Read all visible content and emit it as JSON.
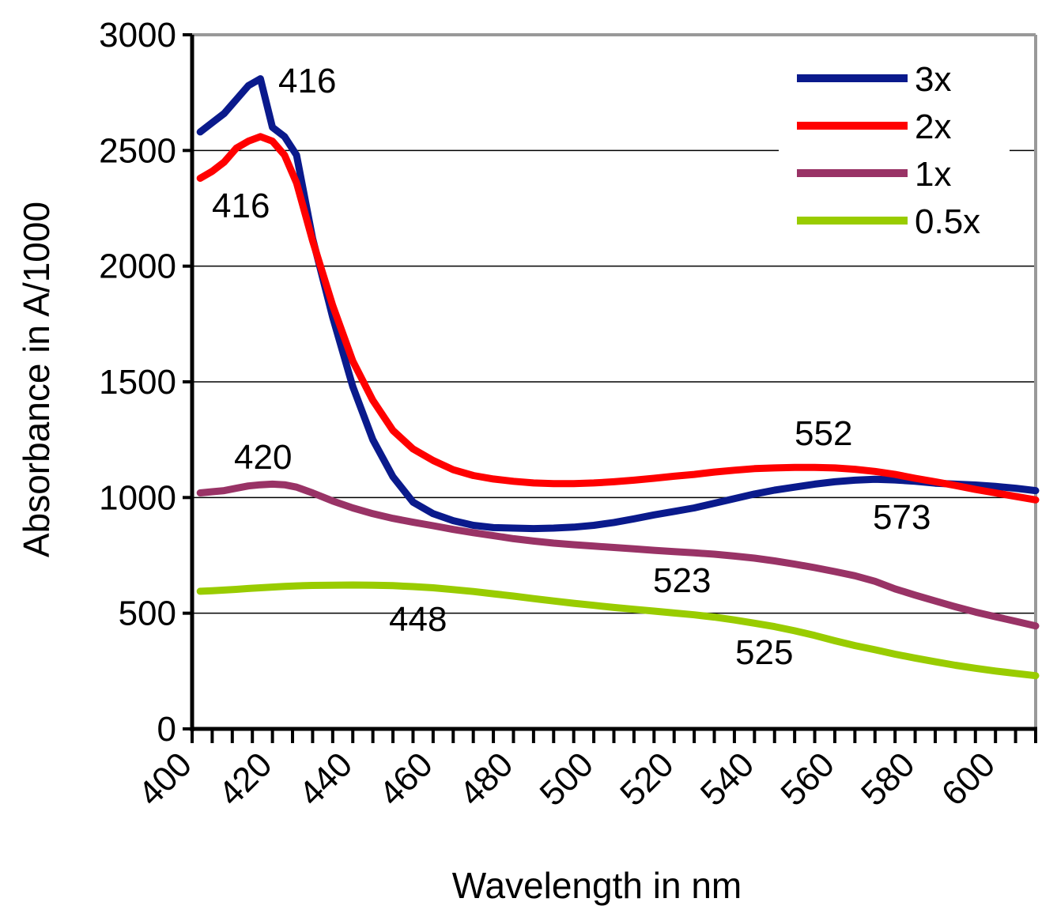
{
  "chart_data": {
    "type": "line",
    "title": "",
    "xlabel": "Wavelength in nm",
    "ylabel": "Absorbance in A/1000",
    "xlim": [
      400,
      610
    ],
    "ylim": [
      0,
      3000
    ],
    "x_ticks": [
      400,
      420,
      440,
      460,
      480,
      500,
      520,
      540,
      560,
      580,
      600
    ],
    "y_ticks": [
      0,
      500,
      1000,
      1500,
      2000,
      2500,
      3000
    ],
    "grid": "horizontal",
    "legend_position": "top-right",
    "x": [
      402,
      405,
      408,
      411,
      414,
      417,
      420,
      423,
      426,
      430,
      435,
      440,
      445,
      450,
      455,
      460,
      465,
      470,
      475,
      480,
      485,
      490,
      495,
      500,
      505,
      510,
      515,
      520,
      525,
      530,
      535,
      540,
      545,
      550,
      555,
      560,
      565,
      570,
      575,
      580,
      585,
      590,
      595,
      600,
      605,
      610
    ],
    "series": [
      {
        "name": "3x",
        "color": "#0a1a8c",
        "values": [
          2580,
          2620,
          2660,
          2720,
          2780,
          2810,
          2600,
          2560,
          2480,
          2120,
          1780,
          1480,
          1250,
          1090,
          980,
          930,
          900,
          880,
          870,
          868,
          866,
          868,
          872,
          880,
          892,
          908,
          925,
          940,
          955,
          975,
          995,
          1015,
          1032,
          1045,
          1058,
          1068,
          1075,
          1079,
          1076,
          1070,
          1062,
          1058,
          1054,
          1048,
          1040,
          1030
        ]
      },
      {
        "name": "2x",
        "color": "#ff0000",
        "values": [
          2380,
          2410,
          2450,
          2510,
          2540,
          2560,
          2540,
          2480,
          2360,
          2110,
          1830,
          1590,
          1420,
          1290,
          1210,
          1160,
          1120,
          1095,
          1080,
          1070,
          1063,
          1060,
          1060,
          1063,
          1068,
          1075,
          1083,
          1092,
          1100,
          1110,
          1118,
          1125,
          1128,
          1130,
          1130,
          1128,
          1122,
          1113,
          1100,
          1083,
          1068,
          1052,
          1035,
          1020,
          1005,
          990
        ]
      },
      {
        "name": "1x",
        "color": "#993366",
        "values": [
          1020,
          1025,
          1030,
          1040,
          1050,
          1055,
          1058,
          1055,
          1045,
          1020,
          985,
          955,
          930,
          910,
          893,
          878,
          862,
          848,
          835,
          822,
          812,
          803,
          796,
          790,
          784,
          778,
          772,
          766,
          761,
          755,
          747,
          738,
          726,
          712,
          697,
          680,
          662,
          638,
          605,
          578,
          553,
          528,
          505,
          485,
          465,
          445
        ]
      },
      {
        "name": "0.5x",
        "color": "#99cc00",
        "values": [
          595,
          597,
          600,
          603,
          607,
          610,
          613,
          616,
          618,
          620,
          621,
          622,
          621,
          619,
          615,
          610,
          602,
          594,
          584,
          574,
          563,
          553,
          543,
          534,
          525,
          517,
          509,
          501,
          493,
          483,
          471,
          457,
          442,
          424,
          404,
          381,
          360,
          342,
          323,
          306,
          290,
          275,
          262,
          250,
          240,
          230
        ]
      }
    ],
    "annotations": [
      {
        "text": "416",
        "series": "3x"
      },
      {
        "text": "416",
        "series": "2x"
      },
      {
        "text": "420",
        "series": "1x"
      },
      {
        "text": "448",
        "series": "0.5x"
      },
      {
        "text": "552",
        "series": "2x"
      },
      {
        "text": "573",
        "series": "3x"
      },
      {
        "text": "523",
        "series": "1x"
      },
      {
        "text": "525",
        "series": "0.5x"
      }
    ]
  }
}
